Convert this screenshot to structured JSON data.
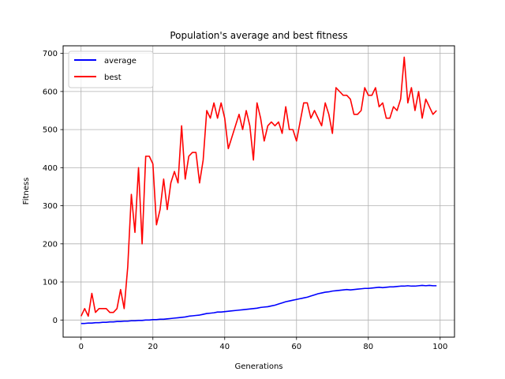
{
  "chart_data": {
    "type": "line",
    "title": "Population's average and best fitness",
    "xlabel": "Generations",
    "ylabel": "Fitness",
    "xlim": [
      -5,
      104
    ],
    "ylim": [
      -45,
      720
    ],
    "xticks": [
      0,
      20,
      40,
      60,
      80,
      100
    ],
    "yticks": [
      0,
      100,
      200,
      300,
      400,
      500,
      600,
      700
    ],
    "grid": true,
    "legend_position": "upper left",
    "x": [
      0,
      1,
      2,
      3,
      4,
      5,
      6,
      7,
      8,
      9,
      10,
      11,
      12,
      13,
      14,
      15,
      16,
      17,
      18,
      19,
      20,
      21,
      22,
      23,
      24,
      25,
      26,
      27,
      28,
      29,
      30,
      31,
      32,
      33,
      34,
      35,
      36,
      37,
      38,
      39,
      40,
      41,
      42,
      43,
      44,
      45,
      46,
      47,
      48,
      49,
      50,
      51,
      52,
      53,
      54,
      55,
      56,
      57,
      58,
      59,
      60,
      61,
      62,
      63,
      64,
      65,
      66,
      67,
      68,
      69,
      70,
      71,
      72,
      73,
      74,
      75,
      76,
      77,
      78,
      79,
      80,
      81,
      82,
      83,
      84,
      85,
      86,
      87,
      88,
      89,
      90,
      91,
      92,
      93,
      94,
      95,
      96,
      97,
      98,
      99
    ],
    "series": [
      {
        "name": "average",
        "color": "#0000ff",
        "values": [
          -9,
          -9,
          -8,
          -8,
          -7,
          -7,
          -6,
          -6,
          -5,
          -5,
          -4,
          -4,
          -3,
          -3,
          -2,
          -2,
          -1,
          -1,
          0,
          0,
          1,
          1,
          2,
          2,
          3,
          4,
          5,
          6,
          7,
          8,
          10,
          11,
          12,
          13,
          15,
          17,
          18,
          19,
          21,
          21,
          22,
          23,
          24,
          25,
          26,
          27,
          28,
          29,
          30,
          31,
          33,
          34,
          35,
          37,
          39,
          42,
          45,
          48,
          50,
          52,
          54,
          56,
          58,
          60,
          63,
          66,
          69,
          71,
          73,
          74,
          76,
          77,
          78,
          79,
          80,
          79,
          80,
          81,
          82,
          83,
          83,
          84,
          85,
          86,
          85,
          86,
          87,
          87,
          88,
          89,
          89,
          90,
          89,
          89,
          90,
          91,
          90,
          91,
          90,
          90
        ]
      },
      {
        "name": "best",
        "color": "#ff0000",
        "values": [
          10,
          30,
          10,
          70,
          20,
          30,
          30,
          30,
          20,
          20,
          30,
          80,
          30,
          140,
          330,
          230,
          400,
          200,
          430,
          430,
          410,
          250,
          290,
          370,
          290,
          360,
          390,
          360,
          510,
          370,
          430,
          440,
          440,
          360,
          420,
          550,
          530,
          570,
          530,
          570,
          530,
          450,
          480,
          510,
          540,
          500,
          550,
          510,
          420,
          570,
          530,
          470,
          510,
          520,
          510,
          520,
          490,
          560,
          500,
          500,
          470,
          520,
          570,
          570,
          530,
          550,
          530,
          510,
          570,
          540,
          490,
          610,
          600,
          590,
          590,
          580,
          540,
          540,
          550,
          610,
          590,
          590,
          610,
          560,
          570,
          530,
          530,
          560,
          550,
          580,
          690,
          570,
          610,
          550,
          600,
          530,
          580,
          560,
          540,
          550
        ]
      }
    ]
  }
}
